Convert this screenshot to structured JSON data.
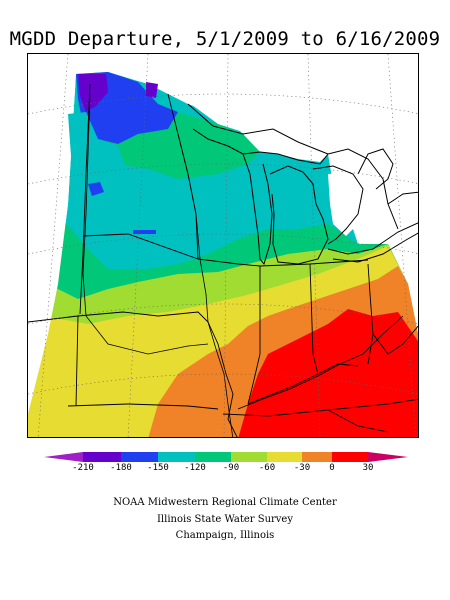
{
  "title": "MGDD Departure, 5/1/2009 to 6/16/2009",
  "legend": {
    "ticks": [
      "-210",
      "-180",
      "-150",
      "-120",
      "-90",
      "-60",
      "-30",
      "0",
      "30"
    ],
    "colors": [
      "#a020c8",
      "#6600cc",
      "#1f3ff0",
      "#00c0c0",
      "#00c878",
      "#a0dc32",
      "#e6dc32",
      "#f08228",
      "#ff0000",
      "#cc0060"
    ]
  },
  "credits": {
    "line1": "NOAA Midwestern Regional Climate Center",
    "line2": "Illinois State Water Survey",
    "line3": "Champaign, Illinois"
  },
  "map_zones": [
    {
      "label": "-30",
      "color": "#e6dc32"
    },
    {
      "label": "0",
      "color": "#f08228"
    },
    {
      "label": "30",
      "color": "#ff0000"
    }
  ]
}
